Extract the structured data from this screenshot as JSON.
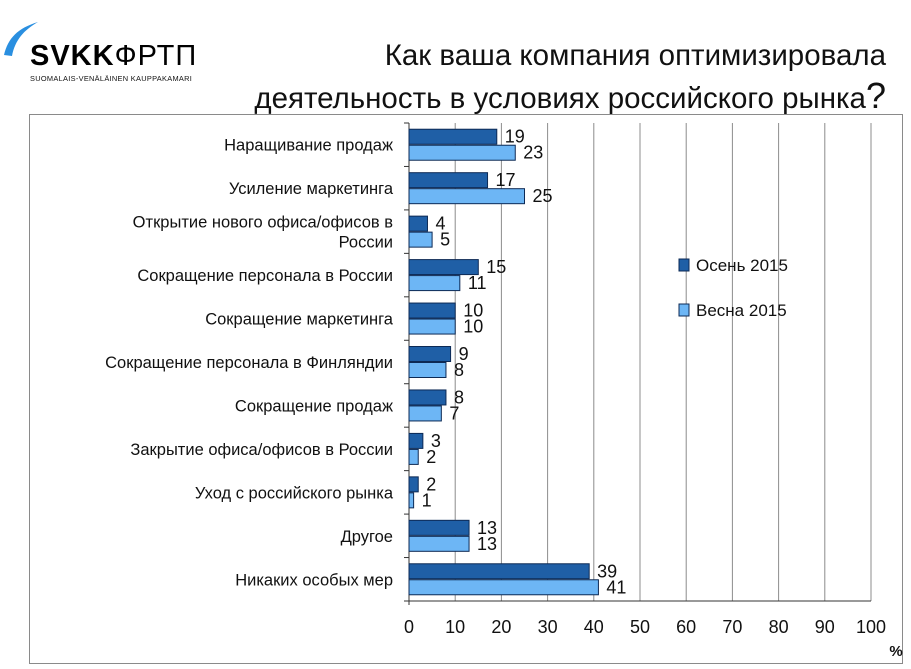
{
  "logo": {
    "brand": "SVKK",
    "brand_cyr": "ФРТП",
    "tagline": "SUOMALAIS-VENÄLÄINEN KAUPPAKAMARI"
  },
  "title_line1": "Как ваша компания оптимизировала",
  "title_line2": "деятельность в условиях российского рынка",
  "title_mark": "?",
  "chart_data": {
    "type": "bar",
    "orientation": "horizontal",
    "categories": [
      [
        "Наращивание продаж"
      ],
      [
        "Усиление маркетинга"
      ],
      [
        "Открытие нового офиса/офисов в",
        "России"
      ],
      [
        "Сокращение персонала в России"
      ],
      [
        "Сокращение маркетинга"
      ],
      [
        "Сокращение персонала в Финляндии"
      ],
      [
        "Сокращение продаж"
      ],
      [
        "Закрытие офиса/офисов в России"
      ],
      [
        "Уход с российского рынка"
      ],
      [
        "Другое"
      ],
      [
        "Никаких особых мер"
      ]
    ],
    "series": [
      {
        "name": "Осень 2015",
        "color": "#1f5fa6",
        "values": [
          19,
          17,
          4,
          15,
          10,
          9,
          8,
          3,
          2,
          13,
          39
        ]
      },
      {
        "name": "Весна 2015",
        "color": "#6db6f5",
        "values": [
          23,
          25,
          5,
          11,
          10,
          8,
          7,
          2,
          1,
          13,
          41
        ]
      }
    ],
    "xlim": [
      0,
      100
    ],
    "xticks": [
      0,
      10,
      20,
      30,
      40,
      50,
      60,
      70,
      80,
      90,
      100
    ],
    "xlabel": "%",
    "grid": true,
    "legend": "right"
  }
}
